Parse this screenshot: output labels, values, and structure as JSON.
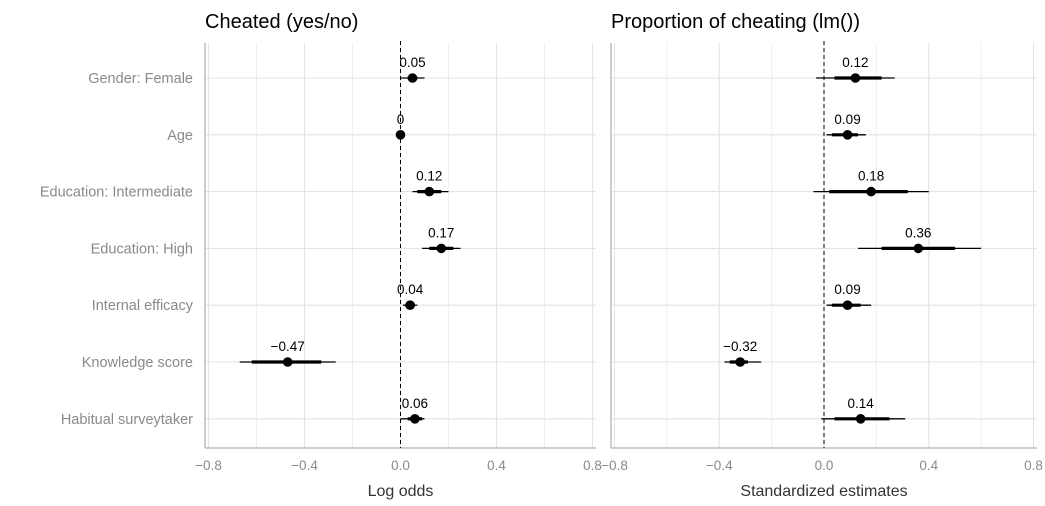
{
  "chart_data": [
    {
      "type": "forest",
      "title": "Cheated (yes/no)",
      "xlabel": "Log odds",
      "ylabel": "",
      "xlim": [
        -0.8,
        0.8
      ],
      "xticks": [
        -0.8,
        -0.4,
        0.0,
        0.4,
        0.8
      ],
      "xtick_labels": [
        "−0.8",
        "−0.4",
        "0.0",
        "0.4",
        "0.8"
      ],
      "reference_line": 0,
      "grid": true,
      "categories": [
        "Gender: Female",
        "Age",
        "Education: Intermediate",
        "Education: High",
        "Internal efficacy",
        "Knowledge score",
        "Habitual surveytaker"
      ],
      "estimates": [
        0.05,
        0.0,
        0.12,
        0.17,
        0.04,
        -0.47,
        0.06
      ],
      "labels": [
        "0.05",
        "0",
        "0.12",
        "0.17",
        "0.04",
        "−0.47",
        "0.06"
      ],
      "inner_interval": [
        [
          0.03,
          0.07
        ],
        [
          0.0,
          0.0
        ],
        [
          0.07,
          0.17
        ],
        [
          0.12,
          0.22
        ],
        [
          0.02,
          0.06
        ],
        [
          -0.62,
          -0.33
        ],
        [
          0.03,
          0.09
        ]
      ],
      "outer_interval": [
        [
          0.0,
          0.1
        ],
        [
          0.0,
          0.0
        ],
        [
          0.05,
          0.2
        ],
        [
          0.09,
          0.25
        ],
        [
          0.01,
          0.07
        ],
        [
          -0.67,
          -0.27
        ],
        [
          0.0,
          0.1
        ]
      ]
    },
    {
      "type": "forest",
      "title": "Proportion of cheating (lm())",
      "xlabel": "Standardized estimates",
      "ylabel": "",
      "xlim": [
        -0.8,
        0.8
      ],
      "xticks": [
        -0.8,
        -0.4,
        0.0,
        0.4,
        0.8
      ],
      "xtick_labels": [
        "−0.8",
        "−0.4",
        "0.0",
        "0.4",
        "0.8"
      ],
      "reference_line": 0,
      "grid": true,
      "categories": [
        "Gender: Female",
        "Age",
        "Education: Intermediate",
        "Education: High",
        "Internal efficacy",
        "Knowledge score",
        "Habitual surveytaker"
      ],
      "estimates": [
        0.12,
        0.09,
        0.18,
        0.36,
        0.09,
        -0.32,
        0.14
      ],
      "labels": [
        "0.12",
        "0.09",
        "0.18",
        "0.36",
        "0.09",
        "−0.32",
        "0.14"
      ],
      "inner_interval": [
        [
          0.04,
          0.22
        ],
        [
          0.03,
          0.13
        ],
        [
          0.02,
          0.32
        ],
        [
          0.22,
          0.5
        ],
        [
          0.03,
          0.14
        ],
        [
          -0.36,
          -0.29
        ],
        [
          0.04,
          0.25
        ]
      ],
      "outer_interval": [
        [
          -0.03,
          0.27
        ],
        [
          0.01,
          0.16
        ],
        [
          -0.04,
          0.4
        ],
        [
          0.13,
          0.6
        ],
        [
          0.01,
          0.18
        ],
        [
          -0.38,
          -0.24
        ],
        [
          -0.01,
          0.31
        ]
      ]
    }
  ]
}
